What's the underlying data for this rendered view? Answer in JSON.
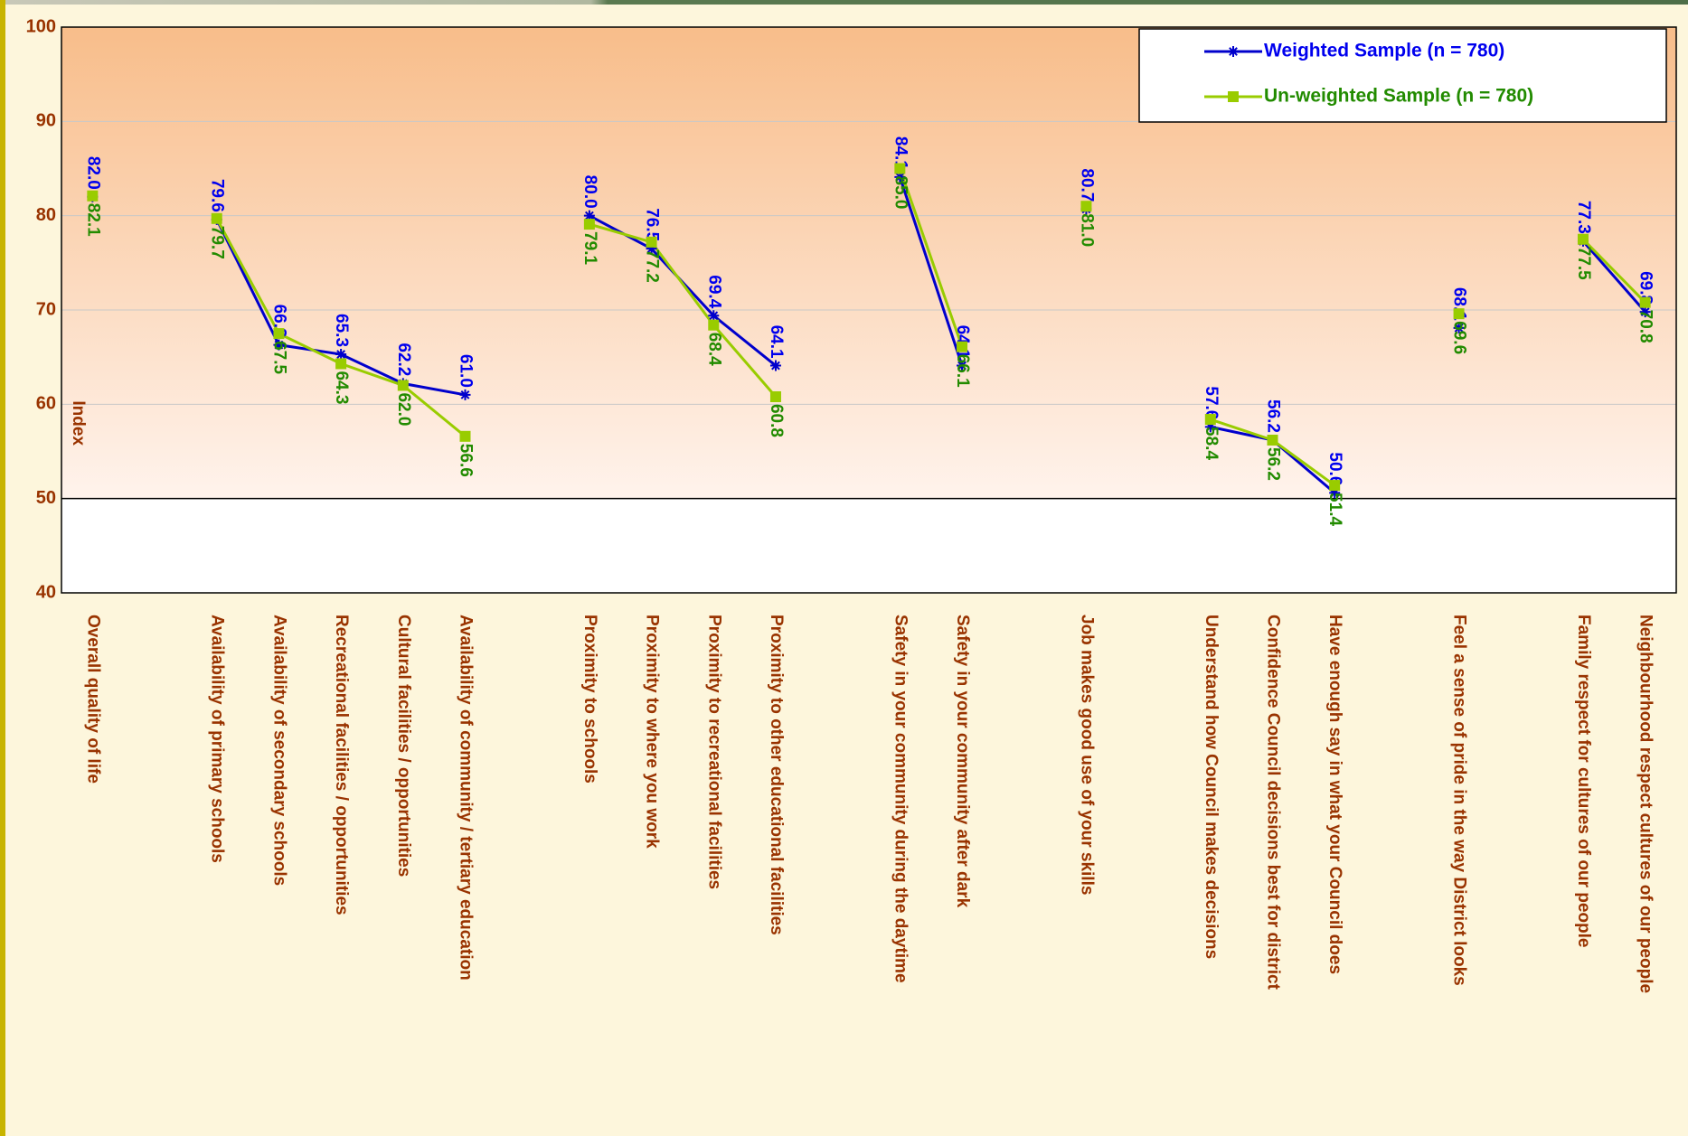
{
  "chart_data": {
    "type": "line",
    "y_label": "Index",
    "categories": [
      "Overall quality of life",
      null,
      "Availability of primary schools",
      "Availability of secondary schools",
      "Recreational facilities / opportunities",
      "Cultural facilities / opportunities",
      "Availability of community / tertiary education",
      null,
      "Proximity to schools",
      "Proximity to where you work",
      "Proximity to recreational facilities",
      "Proximity to other educational facilities",
      null,
      "Safety in your community during the daytime",
      "Safety in your community after dark",
      null,
      "Job makes good use of your skills",
      null,
      "Understand how Council makes decisions",
      "Confidence Council decisions best for district",
      "Have enough say in what your Council does",
      null,
      "Feel a sense of pride in the way District looks",
      null,
      "Family respect for cultures of our people",
      "Neighbourhood respect cultures of our people"
    ],
    "series": [
      {
        "name": "Weighted Sample (n = 780)",
        "color": "#0000cc",
        "label_color": "#0000ee",
        "marker": "asterisk",
        "values": [
          82.0,
          null,
          79.6,
          66.3,
          65.3,
          62.2,
          61.0,
          null,
          80.0,
          76.5,
          69.4,
          64.1,
          null,
          84.1,
          64.1,
          null,
          80.7,
          null,
          57.6,
          56.2,
          50.6,
          null,
          68.1,
          null,
          77.3,
          69.8
        ],
        "value_labels": [
          "82.0",
          null,
          "79.6",
          "66.3",
          "65.3",
          "62.2",
          "61.0",
          null,
          "80.0",
          "76.5",
          "69.4",
          "64.1",
          null,
          "84.1",
          "64.1",
          null,
          "80.7",
          null,
          "57.6",
          "56.2",
          "50.6",
          null,
          "68.1",
          null,
          "77.3",
          "69.8"
        ]
      },
      {
        "name": "Un-weighted Sample (n = 780)",
        "color": "#99cc00",
        "label_color": "#228b00",
        "marker": "square",
        "values": [
          82.1,
          null,
          79.7,
          67.5,
          64.3,
          62.0,
          56.6,
          null,
          79.1,
          77.2,
          68.4,
          60.8,
          null,
          85.0,
          66.1,
          null,
          81.0,
          null,
          58.4,
          56.2,
          51.4,
          null,
          69.6,
          null,
          77.5,
          70.8
        ],
        "value_labels": [
          "82.1",
          null,
          "79.7",
          "67.5",
          "64.3",
          "62.0",
          "56.6",
          null,
          "79.1",
          "77.2",
          "68.4",
          "60.8",
          null,
          "85.0",
          "66.1",
          null,
          "81.0",
          null,
          "58.4",
          "56.2",
          "51.4",
          null,
          "69.6",
          null,
          "77.5",
          "70.8"
        ]
      }
    ],
    "ylim": [
      40,
      100
    ],
    "yticks": [
      40,
      50,
      60,
      70,
      80,
      90,
      100
    ],
    "grid": true,
    "hline": 50,
    "legend": "upper right"
  }
}
